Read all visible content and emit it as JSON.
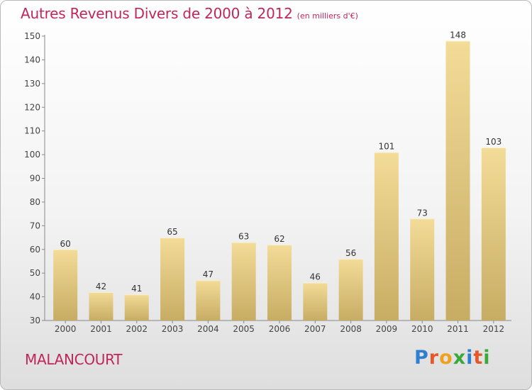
{
  "title": "Autres Revenus Divers de 2000 à 2012",
  "subtitle": "(en milliers d'€)",
  "commune": "MALANCOURT",
  "logo": {
    "letters": [
      "P",
      "r",
      "o",
      "x",
      "i",
      "t",
      "i"
    ],
    "colors": [
      "#2f7fd0",
      "#e8572a",
      "#f0a020",
      "#3aa83a",
      "#2f7fd0",
      "#e8572a",
      "#3aa83a"
    ]
  },
  "chart_data": {
    "type": "bar",
    "title": "Autres Revenus Divers de 2000 à 2012",
    "subtitle": "(en milliers d'€)",
    "xlabel": "",
    "ylabel": "",
    "categories": [
      "2000",
      "2001",
      "2002",
      "2003",
      "2004",
      "2005",
      "2006",
      "2007",
      "2008",
      "2009",
      "2010",
      "2011",
      "2012"
    ],
    "values": [
      60,
      42,
      41,
      65,
      47,
      63,
      62,
      46,
      56,
      101,
      73,
      148,
      103
    ],
    "ylim": [
      30,
      150
    ],
    "yticks": [
      30,
      40,
      50,
      60,
      70,
      80,
      90,
      100,
      110,
      120,
      130,
      140,
      150
    ],
    "grid": false,
    "legend": "none",
    "bar_color": "#e6c97a"
  }
}
